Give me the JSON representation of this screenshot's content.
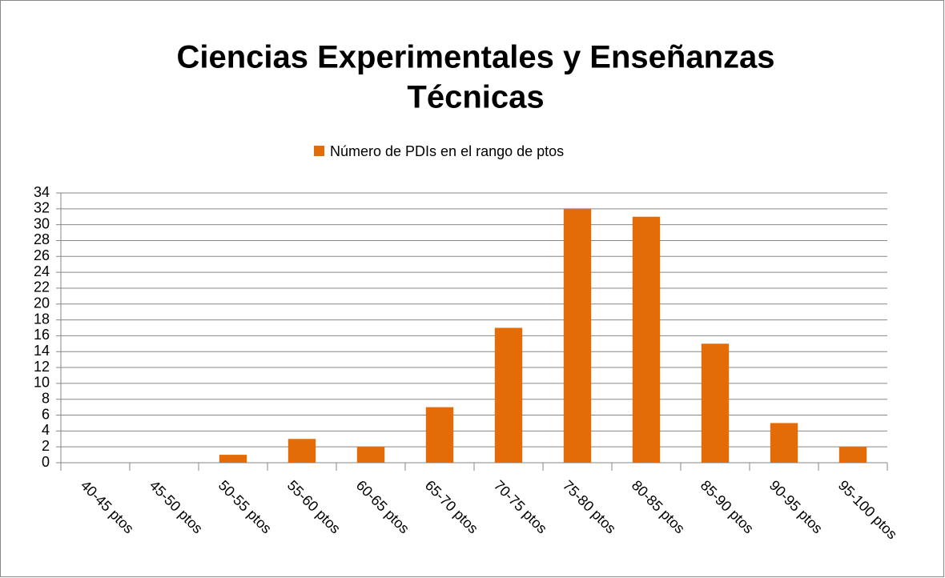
{
  "chart_data": {
    "type": "bar",
    "title": [
      "Ciencias Experimentales y Enseñanzas",
      "Técnicas"
    ],
    "categories": [
      "40-45 ptos",
      "45-50 ptos",
      "50-55 ptos",
      "55-60 ptos",
      "60-65 ptos",
      "65-70 ptos",
      "70-75 ptos",
      "75-80 ptos",
      "80-85 ptos",
      "85-90 ptos",
      "90-95 ptos",
      "95-100 ptos"
    ],
    "series": [
      {
        "name": "Número de PDIs en el rango de ptos",
        "color": "#e36c09",
        "values": [
          0,
          0,
          1,
          3,
          2,
          7,
          17,
          32,
          31,
          15,
          5,
          2
        ]
      }
    ],
    "ylim": [
      0,
      34
    ],
    "yticks": [
      0,
      2,
      4,
      6,
      8,
      10,
      12,
      14,
      16,
      18,
      20,
      22,
      24,
      26,
      28,
      30,
      32,
      34
    ],
    "grid": true,
    "legend": "top"
  }
}
